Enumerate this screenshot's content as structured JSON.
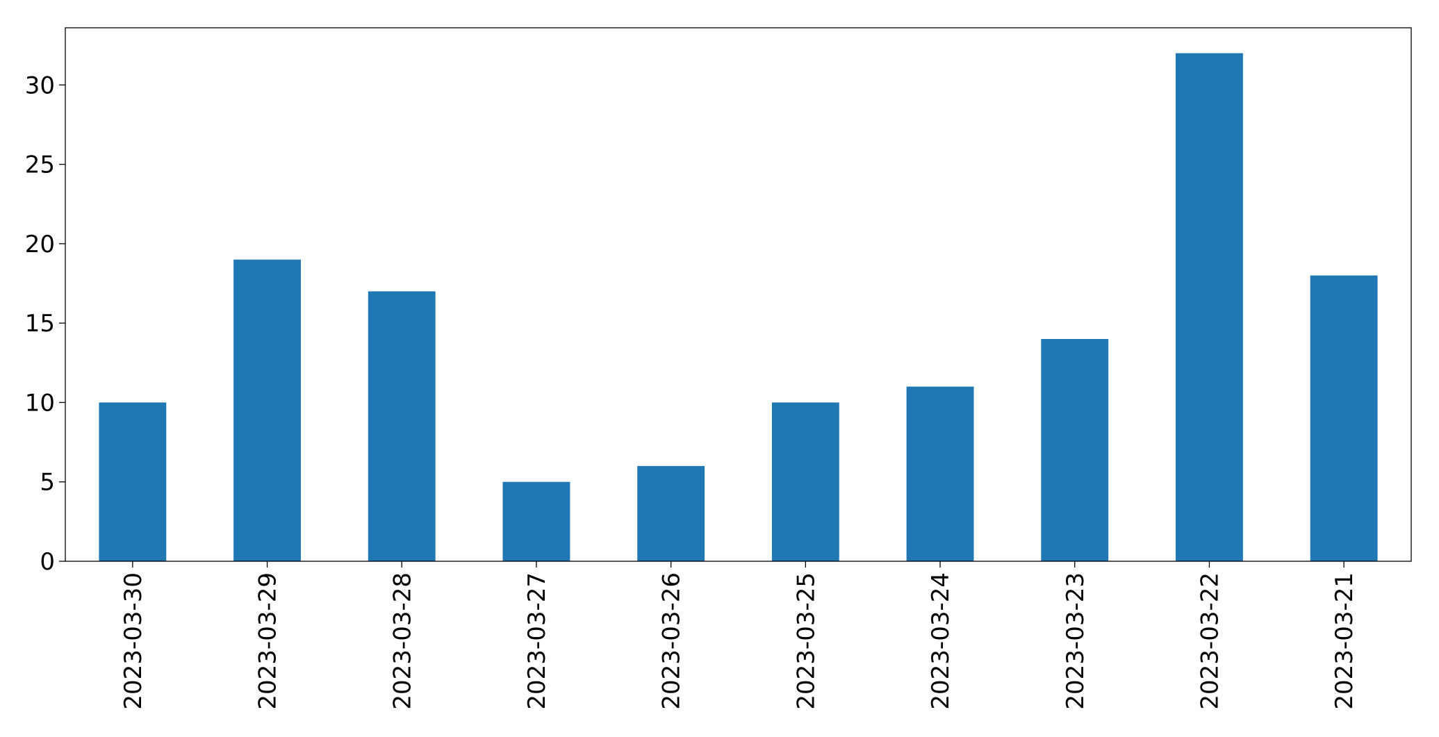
{
  "chart_data": {
    "type": "bar",
    "categories": [
      "2023-03-30",
      "2023-03-29",
      "2023-03-28",
      "2023-03-27",
      "2023-03-26",
      "2023-03-25",
      "2023-03-24",
      "2023-03-23",
      "2023-03-22",
      "2023-03-21"
    ],
    "values": [
      10,
      19,
      17,
      5,
      6,
      10,
      11,
      14,
      32,
      18
    ],
    "color": "#1f77b4",
    "ylim": [
      0,
      33.6
    ],
    "yticks": [
      0,
      5,
      10,
      15,
      20,
      25,
      30
    ],
    "grid": false
  }
}
